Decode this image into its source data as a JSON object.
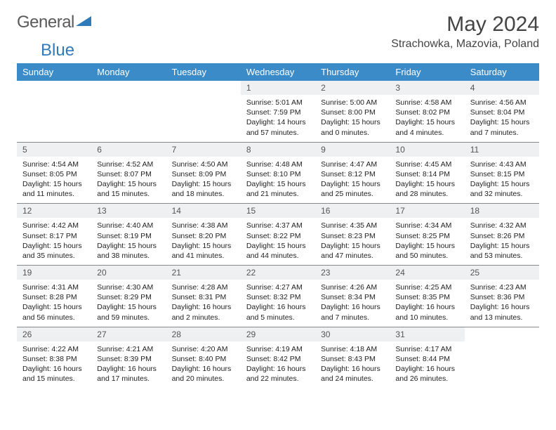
{
  "logo": {
    "text1": "General",
    "text2": "Blue",
    "color1": "#6a6a6a",
    "color2": "#2f7ab8"
  },
  "title": "May 2024",
  "location": "Strachowka, Mazovia, Poland",
  "weekdays": [
    "Sunday",
    "Monday",
    "Tuesday",
    "Wednesday",
    "Thursday",
    "Friday",
    "Saturday"
  ],
  "colors": {
    "header_bg": "#3b8bc9",
    "header_fg": "#ffffff",
    "daynum_bg": "#eef0f2",
    "rule": "#888888"
  },
  "weeks": [
    [
      {
        "n": "",
        "sr": "",
        "ss": "",
        "dl": ""
      },
      {
        "n": "",
        "sr": "",
        "ss": "",
        "dl": ""
      },
      {
        "n": "",
        "sr": "",
        "ss": "",
        "dl": ""
      },
      {
        "n": "1",
        "sr": "5:01 AM",
        "ss": "7:59 PM",
        "dl": "14 hours and 57 minutes."
      },
      {
        "n": "2",
        "sr": "5:00 AM",
        "ss": "8:00 PM",
        "dl": "15 hours and 0 minutes."
      },
      {
        "n": "3",
        "sr": "4:58 AM",
        "ss": "8:02 PM",
        "dl": "15 hours and 4 minutes."
      },
      {
        "n": "4",
        "sr": "4:56 AM",
        "ss": "8:04 PM",
        "dl": "15 hours and 7 minutes."
      }
    ],
    [
      {
        "n": "5",
        "sr": "4:54 AM",
        "ss": "8:05 PM",
        "dl": "15 hours and 11 minutes."
      },
      {
        "n": "6",
        "sr": "4:52 AM",
        "ss": "8:07 PM",
        "dl": "15 hours and 15 minutes."
      },
      {
        "n": "7",
        "sr": "4:50 AM",
        "ss": "8:09 PM",
        "dl": "15 hours and 18 minutes."
      },
      {
        "n": "8",
        "sr": "4:48 AM",
        "ss": "8:10 PM",
        "dl": "15 hours and 21 minutes."
      },
      {
        "n": "9",
        "sr": "4:47 AM",
        "ss": "8:12 PM",
        "dl": "15 hours and 25 minutes."
      },
      {
        "n": "10",
        "sr": "4:45 AM",
        "ss": "8:14 PM",
        "dl": "15 hours and 28 minutes."
      },
      {
        "n": "11",
        "sr": "4:43 AM",
        "ss": "8:15 PM",
        "dl": "15 hours and 32 minutes."
      }
    ],
    [
      {
        "n": "12",
        "sr": "4:42 AM",
        "ss": "8:17 PM",
        "dl": "15 hours and 35 minutes."
      },
      {
        "n": "13",
        "sr": "4:40 AM",
        "ss": "8:19 PM",
        "dl": "15 hours and 38 minutes."
      },
      {
        "n": "14",
        "sr": "4:38 AM",
        "ss": "8:20 PM",
        "dl": "15 hours and 41 minutes."
      },
      {
        "n": "15",
        "sr": "4:37 AM",
        "ss": "8:22 PM",
        "dl": "15 hours and 44 minutes."
      },
      {
        "n": "16",
        "sr": "4:35 AM",
        "ss": "8:23 PM",
        "dl": "15 hours and 47 minutes."
      },
      {
        "n": "17",
        "sr": "4:34 AM",
        "ss": "8:25 PM",
        "dl": "15 hours and 50 minutes."
      },
      {
        "n": "18",
        "sr": "4:32 AM",
        "ss": "8:26 PM",
        "dl": "15 hours and 53 minutes."
      }
    ],
    [
      {
        "n": "19",
        "sr": "4:31 AM",
        "ss": "8:28 PM",
        "dl": "15 hours and 56 minutes."
      },
      {
        "n": "20",
        "sr": "4:30 AM",
        "ss": "8:29 PM",
        "dl": "15 hours and 59 minutes."
      },
      {
        "n": "21",
        "sr": "4:28 AM",
        "ss": "8:31 PM",
        "dl": "16 hours and 2 minutes."
      },
      {
        "n": "22",
        "sr": "4:27 AM",
        "ss": "8:32 PM",
        "dl": "16 hours and 5 minutes."
      },
      {
        "n": "23",
        "sr": "4:26 AM",
        "ss": "8:34 PM",
        "dl": "16 hours and 7 minutes."
      },
      {
        "n": "24",
        "sr": "4:25 AM",
        "ss": "8:35 PM",
        "dl": "16 hours and 10 minutes."
      },
      {
        "n": "25",
        "sr": "4:23 AM",
        "ss": "8:36 PM",
        "dl": "16 hours and 13 minutes."
      }
    ],
    [
      {
        "n": "26",
        "sr": "4:22 AM",
        "ss": "8:38 PM",
        "dl": "16 hours and 15 minutes."
      },
      {
        "n": "27",
        "sr": "4:21 AM",
        "ss": "8:39 PM",
        "dl": "16 hours and 17 minutes."
      },
      {
        "n": "28",
        "sr": "4:20 AM",
        "ss": "8:40 PM",
        "dl": "16 hours and 20 minutes."
      },
      {
        "n": "29",
        "sr": "4:19 AM",
        "ss": "8:42 PM",
        "dl": "16 hours and 22 minutes."
      },
      {
        "n": "30",
        "sr": "4:18 AM",
        "ss": "8:43 PM",
        "dl": "16 hours and 24 minutes."
      },
      {
        "n": "31",
        "sr": "4:17 AM",
        "ss": "8:44 PM",
        "dl": "16 hours and 26 minutes."
      },
      {
        "n": "",
        "sr": "",
        "ss": "",
        "dl": ""
      }
    ]
  ],
  "labels": {
    "sunrise": "Sunrise: ",
    "sunset": "Sunset: ",
    "daylight": "Daylight: "
  }
}
